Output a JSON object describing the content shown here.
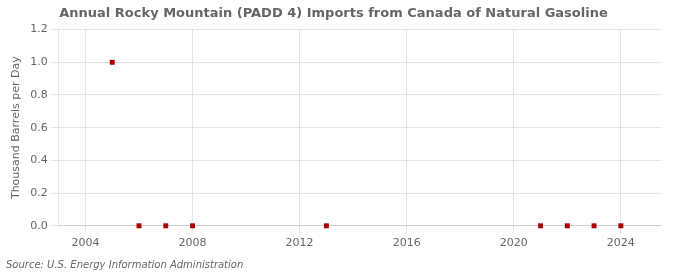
{
  "chart_data": {
    "type": "scatter",
    "title": "Annual Rocky Mountain (PADD 4) Imports from Canada of Natural Gasoline",
    "ylabel": "Thousand Barrels per Day",
    "annotation": "Source: U.S. Energy Information Administration",
    "x": [
      2005,
      2006,
      2007,
      2008,
      2013,
      2021,
      2022,
      2023,
      2024
    ],
    "values": [
      1.0,
      0.0,
      0.0,
      0.0,
      0.0,
      0.0,
      0.0,
      0.0,
      0.0
    ],
    "color": "#aa0000",
    "marker": "square",
    "xlim": [
      2003.0,
      2025.5
    ],
    "xticks": [
      2004,
      2008,
      2012,
      2016,
      2020,
      2024
    ],
    "ylim": [
      0.0,
      1.2
    ],
    "yticks": [
      {
        "value": 0.0,
        "label": "0.0"
      },
      0.2,
      0.4,
      0.6,
      0.8,
      {
        "value": 1.0,
        "label": "1.0"
      },
      1.2
    ],
    "grid": true
  }
}
